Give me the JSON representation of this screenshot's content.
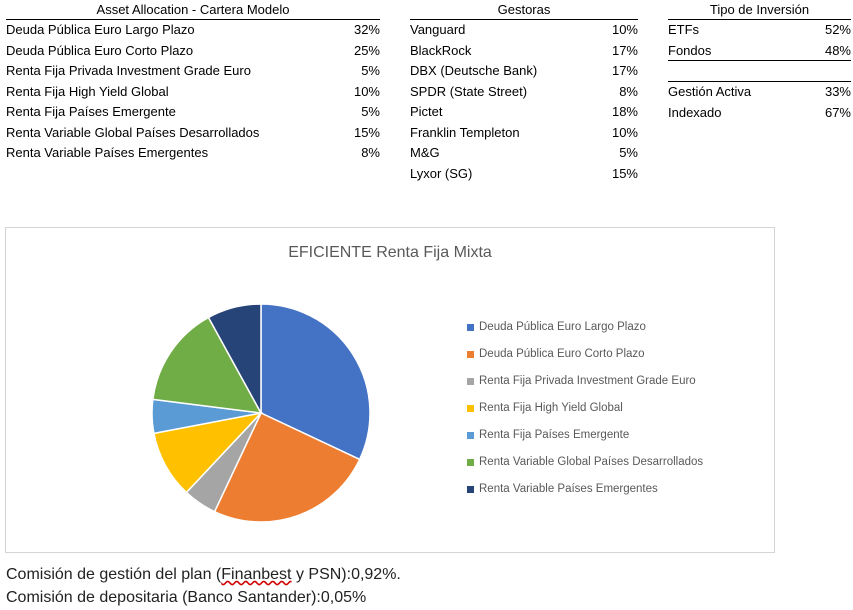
{
  "tables": {
    "asset_allocation": {
      "header": "Asset Allocation - Cartera Modelo",
      "rows": [
        {
          "label": "Deuda Pública Euro Largo Plazo",
          "value": "32%"
        },
        {
          "label": "Deuda Pública Euro Corto Plazo",
          "value": "25%"
        },
        {
          "label": "Renta Fija Privada Investment Grade Euro",
          "value": "5%"
        },
        {
          "label": "Renta Fija High Yield Global",
          "value": "10%"
        },
        {
          "label": "Renta Fija Países Emergente",
          "value": "5%"
        },
        {
          "label": "Renta Variable Global Países Desarrollados",
          "value": "15%"
        },
        {
          "label": "Renta Variable Países Emergentes",
          "value": "8%"
        }
      ]
    },
    "gestoras": {
      "header": "Gestoras",
      "rows": [
        {
          "label": "Vanguard",
          "value": "10%"
        },
        {
          "label": "BlackRock",
          "value": "17%"
        },
        {
          "label": "DBX (Deutsche Bank)",
          "value": "17%"
        },
        {
          "label": "SPDR (State Street)",
          "value": "8%"
        },
        {
          "label": "Pictet",
          "value": "18%"
        },
        {
          "label": "Franklin Templeton",
          "value": "10%"
        },
        {
          "label": "M&G",
          "value": "5%"
        },
        {
          "label": "Lyxor (SG)",
          "value": "15%"
        }
      ]
    },
    "tipo_inversion": {
      "header": "Tipo de Inversión",
      "group1": [
        {
          "label": "ETFs",
          "value": "52%"
        },
        {
          "label": "Fondos",
          "value": "48%"
        }
      ],
      "group2": [
        {
          "label": "Gestión Activa",
          "value": "33%"
        },
        {
          "label": "Indexado",
          "value": "67%"
        }
      ]
    }
  },
  "chart_data": {
    "type": "pie",
    "title": "EFICIENTE Renta Fija Mixta",
    "legend_position": "right",
    "categories": [
      "Deuda Pública Euro Largo Plazo",
      "Deuda Pública Euro Corto Plazo",
      "Renta Fija Privada Investment Grade Euro",
      "Renta Fija High Yield Global",
      "Renta Fija Países Emergente",
      "Renta Variable Global Países Desarrollados",
      "Renta Variable Países Emergentes"
    ],
    "values": [
      32,
      25,
      5,
      10,
      5,
      15,
      8
    ],
    "colors": [
      "#4472C4",
      "#ED7D31",
      "#A5A5A5",
      "#FFC000",
      "#5B9BD5",
      "#70AD47",
      "#264478"
    ]
  },
  "notes": {
    "line1_before": "Comisión de gestión del plan (",
    "line1_link": "Finanbest",
    "line1_after": " y PSN):0,92%.",
    "line2": "Comisión de depositaria (Banco Santander):0,05%"
  }
}
